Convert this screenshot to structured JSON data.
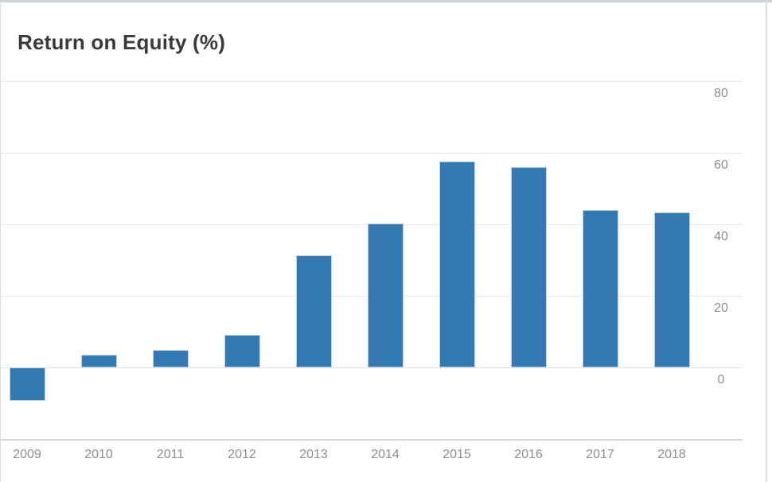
{
  "chart_data": {
    "type": "bar",
    "title": "Return on Equity (%)",
    "categories": [
      "2009",
      "2010",
      "2011",
      "2012",
      "2013",
      "2014",
      "2015",
      "2016",
      "2017",
      "2018"
    ],
    "values": [
      -9.4,
      3.5,
      4.8,
      9.2,
      31.4,
      40.2,
      57.5,
      56.0,
      43.9,
      43.3
    ],
    "xlabel": "",
    "ylabel": "",
    "yticks": [
      0,
      20,
      40,
      60,
      80
    ],
    "ylim": [
      -20,
      85
    ],
    "y_axis_side": "right",
    "grid": true,
    "legend_position": "none",
    "colors": {
      "bar_fill": "#3579b2",
      "bar_border": "#bdd2e2",
      "gridline": "#e7e7e7",
      "zero_line": "#e0e0e0",
      "axis_line": "#d8d8d8",
      "tick_label": "#8d8d8d",
      "title": "#3a3a3a",
      "card_top_border": "#ced3d9",
      "card_side_border": "#dadde1",
      "background": "#ffffff"
    }
  }
}
